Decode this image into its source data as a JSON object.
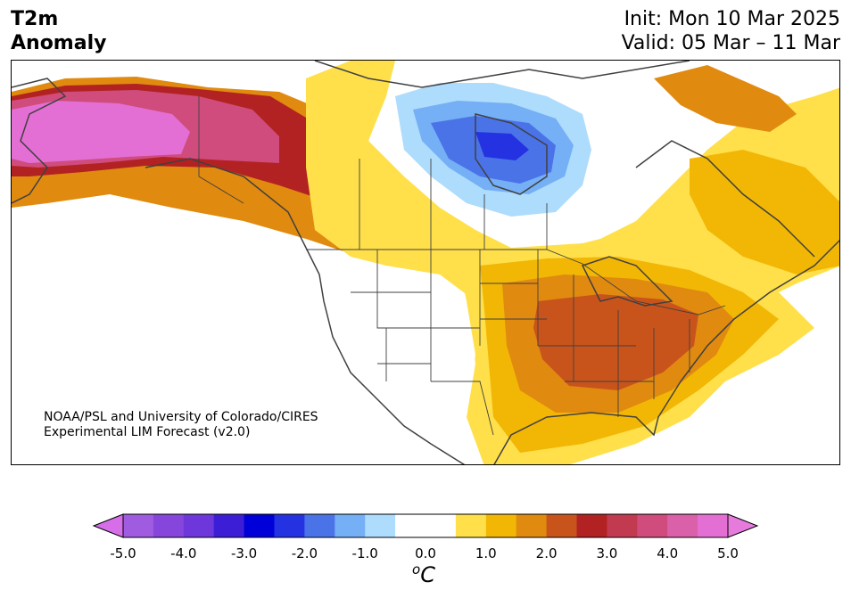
{
  "title": {
    "line1": "T2m",
    "line2": "Anomaly"
  },
  "forecast": {
    "init": "Init: Mon 10 Mar 2025",
    "valid": "Valid: 05 Mar – 11 Mar"
  },
  "credit": {
    "line1": "NOAA/PSL and University of Colorado/CIRES",
    "line2": "Experimental LIM Forecast (v2.0)"
  },
  "colorbar": {
    "unit_prefix": "o",
    "unit": "C",
    "tick_labels": [
      "-5.0",
      "-4.0",
      "-3.0",
      "-2.0",
      "-1.0",
      "0.0",
      "1.0",
      "2.0",
      "3.0",
      "4.0",
      "5.0"
    ],
    "bins": [
      {
        "from": -5.0,
        "to": -4.5,
        "color": "#a05ce0"
      },
      {
        "from": -4.5,
        "to": -4.0,
        "color": "#8646dc"
      },
      {
        "from": -4.0,
        "to": -3.5,
        "color": "#6e37dc"
      },
      {
        "from": -3.5,
        "to": -3.0,
        "color": "#3b1ed6"
      },
      {
        "from": -3.0,
        "to": -2.5,
        "color": "#0000d8"
      },
      {
        "from": -2.5,
        "to": -2.0,
        "color": "#2532e2"
      },
      {
        "from": -2.0,
        "to": -1.5,
        "color": "#4a73e8"
      },
      {
        "from": -1.5,
        "to": -1.0,
        "color": "#75aff5"
      },
      {
        "from": -1.0,
        "to": -0.5,
        "color": "#aedcfc"
      },
      {
        "from": -0.5,
        "to": 0.5,
        "color": "#ffffff"
      },
      {
        "from": 0.5,
        "to": 1.0,
        "color": "#ffe04a"
      },
      {
        "from": 1.0,
        "to": 1.5,
        "color": "#f2b705"
      },
      {
        "from": 1.5,
        "to": 2.0,
        "color": "#e08a10"
      },
      {
        "from": 2.0,
        "to": 2.5,
        "color": "#c9541b"
      },
      {
        "from": 2.5,
        "to": 3.0,
        "color": "#b22222"
      },
      {
        "from": 3.0,
        "to": 3.5,
        "color": "#c23a50"
      },
      {
        "from": 3.5,
        "to": 4.0,
        "color": "#cf4c7c"
      },
      {
        "from": 4.0,
        "to": 4.5,
        "color": "#da60aa"
      },
      {
        "from": 4.5,
        "to": 5.0,
        "color": "#e46fd4"
      }
    ],
    "under_color": "#d56ee8",
    "over_color": "#e77bdd"
  }
}
